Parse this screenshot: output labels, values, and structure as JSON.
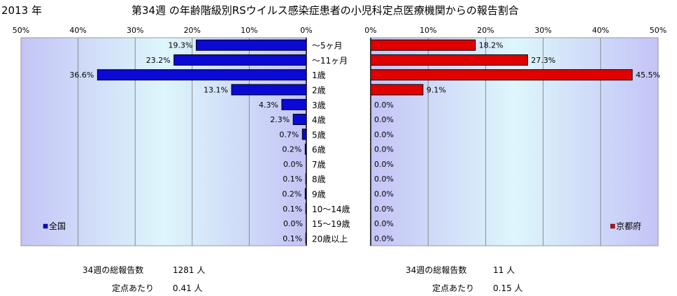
{
  "header": {
    "year": "2013 年",
    "title": "第34週 の年齢階級別RSウイルス感染症患者の小児科定点医療機関からの報告割合"
  },
  "colors": {
    "national": "#0a0ad4",
    "kyoto": "#e00000"
  },
  "chart_data": [
    {
      "type": "bar",
      "orientation": "horizontal",
      "direction": "right-to-left",
      "legend": {
        "label": "全国",
        "position": "bottom-left"
      },
      "xlim": [
        0,
        50
      ],
      "ticks": [
        "50%",
        "40%",
        "30%",
        "20%",
        "10%",
        "0%"
      ],
      "categories": [
        "～5ヶ月",
        "～11ヶ月",
        "1歳",
        "2歳",
        "3歳",
        "4歳",
        "5歳",
        "6歳",
        "7歳",
        "8歳",
        "9歳",
        "10～14歳",
        "15～19歳",
        "20歳以上"
      ],
      "values": [
        19.3,
        23.2,
        36.6,
        13.1,
        4.3,
        2.3,
        0.7,
        0.2,
        0.0,
        0.1,
        0.2,
        0.1,
        0.0,
        0.1
      ],
      "data_labels": [
        "19.3%",
        "23.2%",
        "36.6%",
        "13.1%",
        "4.3%",
        "2.3%",
        "0.7%",
        "0.2%",
        "0.0%",
        "0.1%",
        "0.2%",
        "0.1%",
        "0.0%",
        "0.1%"
      ],
      "grid": true
    },
    {
      "type": "bar",
      "orientation": "horizontal",
      "direction": "left-to-right",
      "legend": {
        "label": "京都府",
        "position": "bottom-right"
      },
      "xlim": [
        0,
        50
      ],
      "ticks": [
        "0%",
        "10%",
        "20%",
        "30%",
        "40%",
        "50%"
      ],
      "values": [
        18.2,
        27.3,
        45.5,
        9.1,
        0.0,
        0.0,
        0.0,
        0.0,
        0.0,
        0.0,
        0.0,
        0.0,
        0.0,
        0.0
      ],
      "data_labels": [
        "18.2%",
        "27.3%",
        "45.5%",
        "9.1%",
        "0.0%",
        "0.0%",
        "0.0%",
        "0.0%",
        "0.0%",
        "0.0%",
        "0.0%",
        "0.0%",
        "0.0%",
        "0.0%"
      ],
      "grid": true
    }
  ],
  "footer": {
    "national": {
      "week_label": "34週の総報告数",
      "week_value": "1281 人",
      "per_label": "定点あたり",
      "per_value": "0.41 人"
    },
    "kyoto": {
      "week_label": "34週の総報告数",
      "week_value": "11 人",
      "per_label": "定点あたり",
      "per_value": "0.15 人"
    }
  }
}
